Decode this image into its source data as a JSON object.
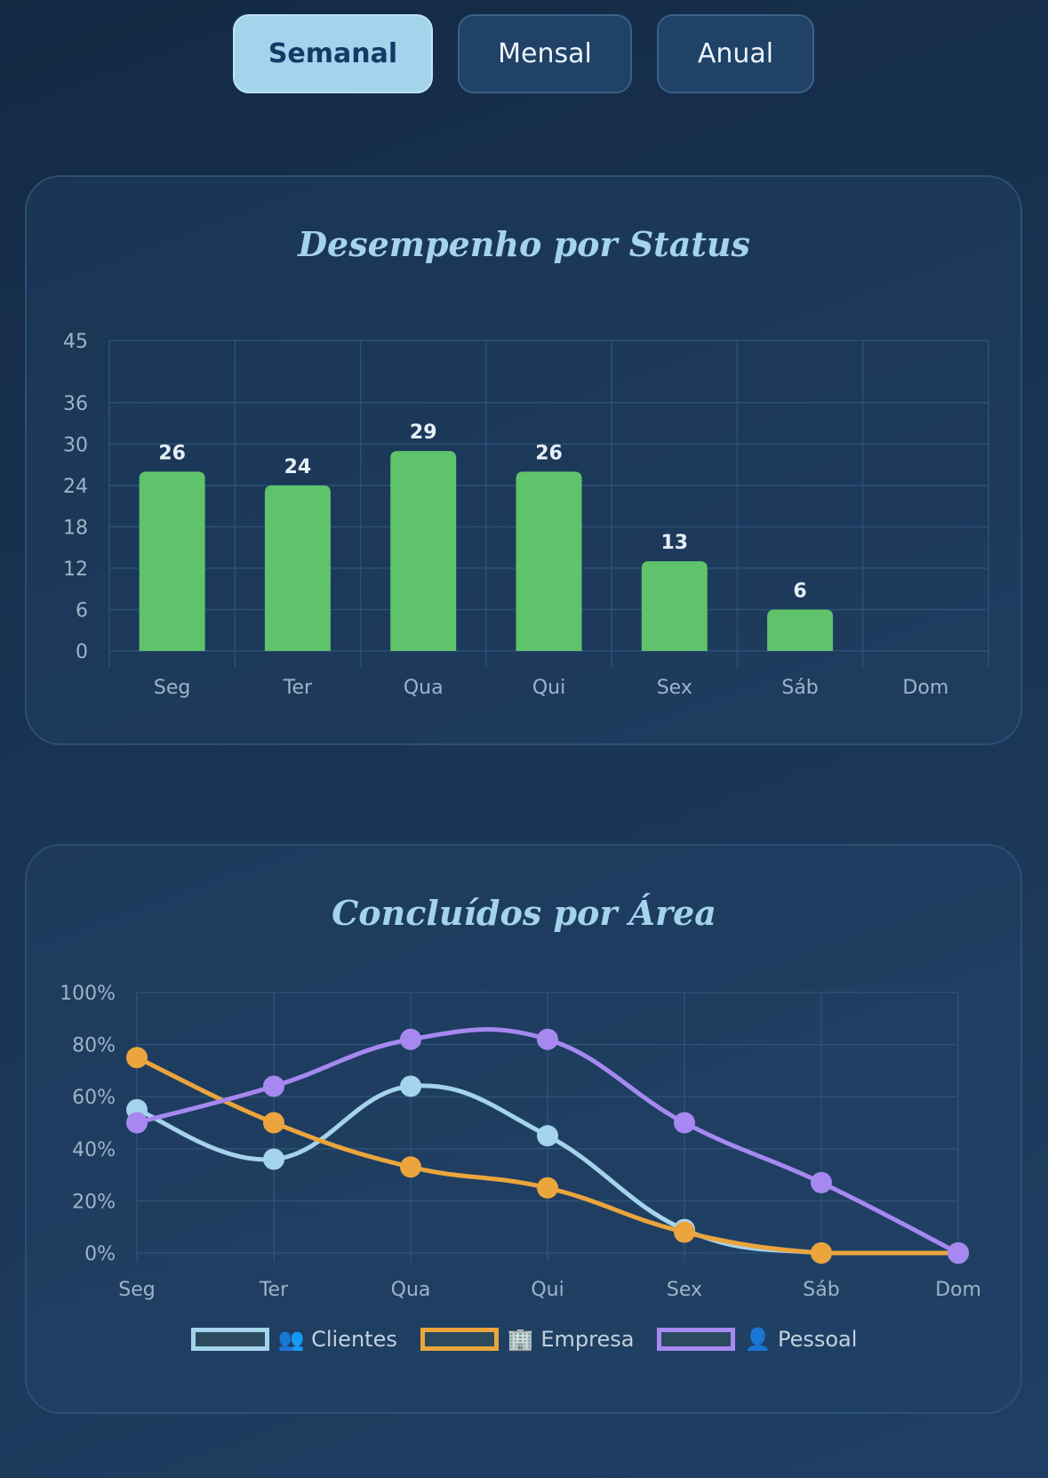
{
  "period_tabs": [
    {
      "label": "Semanal",
      "active": true
    },
    {
      "label": "Mensal",
      "active": false
    },
    {
      "label": "Anual",
      "active": false
    }
  ],
  "chart_data": [
    {
      "type": "bar",
      "title": "Desempenho por Status",
      "categories": [
        "Seg",
        "Ter",
        "Qua",
        "Qui",
        "Sex",
        "Sáb",
        "Dom"
      ],
      "values": [
        26,
        24,
        29,
        26,
        13,
        6,
        0
      ],
      "data_labels": [
        "26",
        "24",
        "29",
        "26",
        "13",
        "6",
        ""
      ],
      "yticks": [
        0,
        6,
        12,
        18,
        24,
        30,
        36,
        45
      ],
      "ylim": [
        0,
        45
      ],
      "grid": true,
      "color": "#5ec36a"
    },
    {
      "type": "line",
      "title": "Concluídos por Área",
      "categories": [
        "Seg",
        "Ter",
        "Qua",
        "Qui",
        "Sex",
        "Sáb",
        "Dom"
      ],
      "yticks": [
        "0%",
        "20%",
        "40%",
        "60%",
        "80%",
        "100%"
      ],
      "ylim": [
        0,
        100
      ],
      "grid": true,
      "legend": "bottom",
      "series": [
        {
          "name": "👥 Clientes",
          "color": "#a4d3ec",
          "values": [
            55,
            36,
            64,
            45,
            9,
            0,
            0
          ]
        },
        {
          "name": "🏢 Empresa",
          "color": "#eba53c",
          "values": [
            75,
            50,
            33,
            25,
            8,
            0,
            0
          ]
        },
        {
          "name": "👤 Pessoal",
          "color": "#a688f0",
          "values": [
            50,
            64,
            82,
            82,
            50,
            27,
            0
          ]
        }
      ]
    }
  ]
}
